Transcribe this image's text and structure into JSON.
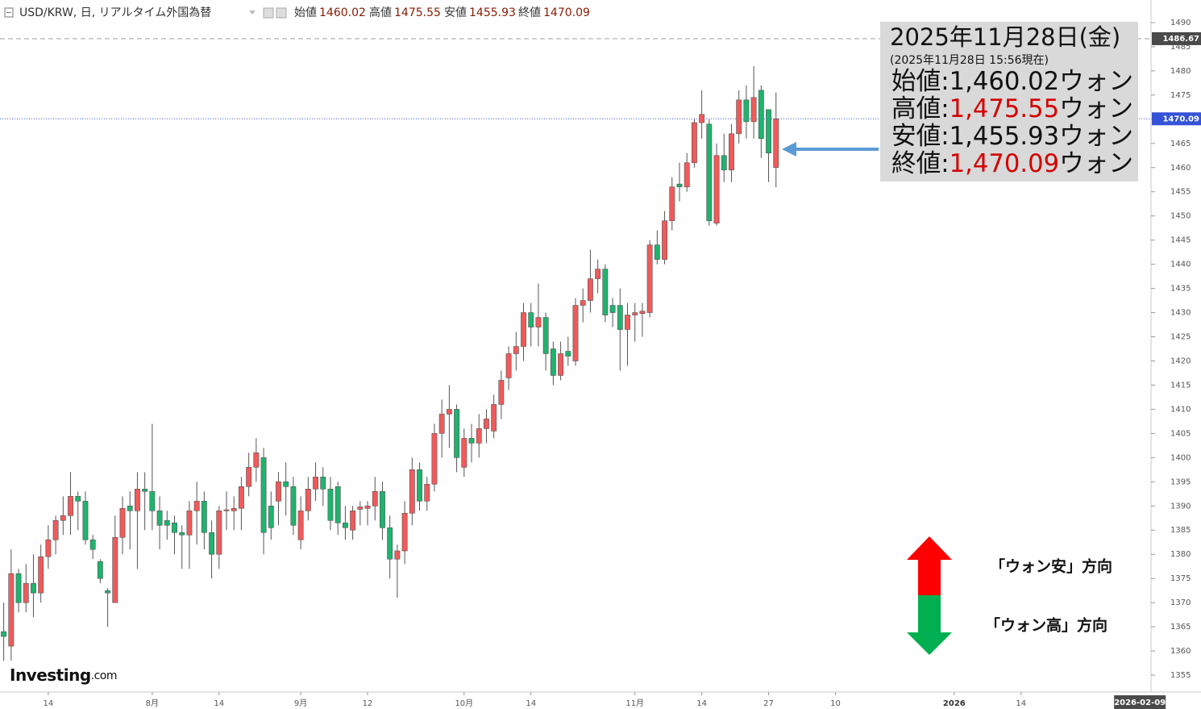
{
  "chart_data": {
    "type": "candlestick",
    "title": "USD/KRW, 日, リアルタイム外国為替",
    "header_labels": [
      "始値",
      "高値",
      "安値",
      "終値"
    ],
    "categories": [
      null,
      null,
      null,
      null,
      null,
      null,
      "14",
      null,
      null,
      null,
      null,
      null,
      null,
      null,
      null,
      null,
      null,
      null,
      null,
      null,
      "8月",
      null,
      null,
      null,
      null,
      null,
      null,
      null,
      null,
      "14",
      null,
      null,
      null,
      null,
      null,
      null,
      null,
      null,
      null,
      null,
      "9月",
      null,
      null,
      null,
      null,
      null,
      null,
      null,
      null,
      "12",
      null,
      null,
      null,
      null,
      null,
      null,
      null,
      null,
      null,
      null,
      null,
      null,
      "10月",
      null,
      null,
      null,
      null,
      null,
      null,
      null,
      null,
      "14",
      null,
      null,
      null,
      null,
      null,
      null,
      null,
      null,
      null,
      null,
      null,
      null,
      null,
      "11月",
      null,
      null,
      null,
      null,
      null,
      null,
      null,
      null,
      "14",
      null,
      null,
      null,
      null,
      null,
      null,
      null,
      null,
      "27",
      null,
      null,
      null,
      null,
      null,
      null,
      null,
      null,
      "10",
      null,
      null,
      null,
      null,
      null,
      null,
      null,
      null,
      null,
      null,
      null,
      null,
      null,
      null,
      null,
      "2026",
      null,
      null,
      null,
      null,
      null,
      null,
      null,
      null,
      "14",
      null,
      null,
      null,
      null,
      null,
      null,
      null,
      null,
      null,
      null,
      null,
      null,
      null,
      null,
      null,
      "2026-02-09",
      null
    ],
    "open": [
      1364,
      1361,
      1376,
      1370,
      1374,
      1372,
      1379.5,
      1383,
      1387,
      1388,
      1392,
      1391,
      1383,
      1378.5,
      1372.5,
      1370,
      1383.5,
      1390,
      1389,
      1393.5,
      1393,
      1389,
      1387,
      1386.5,
      1384.5,
      1384,
      1389,
      1391,
      1384.5,
      1380,
      1389,
      1389,
      1389.5,
      1394,
      1398,
      1400,
      1390,
      1391,
      1395,
      1394,
      1383,
      1389,
      1393.5,
      1396,
      1393.5,
      1394,
      1386.5,
      1385,
      1389.3,
      1389.5,
      1390,
      1393,
      1385.5,
      1379,
      1380.7,
      1388.5,
      1397.5,
      1391,
      1394.5,
      1405,
      1409,
      1410,
      1398,
      1404,
      1403,
      1406,
      1405.5,
      1411,
      1416.5,
      1421.5,
      1423,
      1430,
      1427,
      1429,
      1422.5,
      1417,
      1422,
      1420,
      1431.5,
      1432.5,
      1437,
      1439,
      1431.5,
      1431.5,
      1426.5,
      1429.5,
      1429.8,
      1430,
      1444,
      1441,
      1449,
      1456.6,
      1456,
      1461,
      1469.3,
      1469,
      1448.5,
      1462.5,
      1459.5,
      1467,
      1474,
      1469.5,
      1476,
      1472,
      1460.02,
      null,
      null,
      null,
      null,
      null,
      null,
      null,
      null,
      null,
      null,
      null,
      null,
      null,
      null,
      null,
      null,
      null,
      null,
      null,
      null,
      null,
      null,
      null,
      null,
      null,
      null,
      null,
      null,
      null,
      null,
      null,
      null,
      null,
      null,
      null,
      null,
      null,
      null,
      null,
      null,
      null,
      null,
      null,
      null,
      null,
      null,
      null,
      null,
      null,
      null
    ],
    "high": [
      1370,
      1381,
      1377,
      1378,
      1380,
      1382,
      1386,
      1388,
      1392,
      1397,
      1393,
      1393,
      1384,
      1379,
      1373,
      1388,
      1392,
      1393,
      1397,
      1397,
      1407,
      1392,
      1389,
      1388,
      1386,
      1391,
      1395,
      1393,
      1387,
      1390,
      1393,
      1392,
      1396,
      1401,
      1404,
      1402,
      1393,
      1397,
      1399,
      1396,
      1392,
      1396,
      1399,
      1398,
      1396,
      1395,
      1390,
      1390,
      1391,
      1391,
      1396,
      1395,
      1388,
      1382,
      1391,
      1400,
      1399,
      1396,
      1407,
      1412,
      1415,
      1411,
      1406,
      1407,
      1409,
      1410,
      1413,
      1418,
      1423,
      1426,
      1432,
      1432,
      1436,
      1430,
      1424,
      1424,
      1425,
      1433,
      1435,
      1443,
      1441,
      1440,
      1433,
      1435,
      1432,
      1432,
      1432,
      1445,
      1447,
      1451,
      1458,
      1461,
      1463,
      1470,
      1476,
      1470,
      1465,
      1467,
      1469,
      1476,
      1477,
      1481,
      1477,
      1472,
      1475.55,
      null,
      null,
      null,
      null,
      null,
      null,
      null,
      null,
      null,
      null,
      null,
      null,
      null,
      null,
      null,
      null,
      null,
      null,
      null,
      null,
      null,
      null,
      null,
      null,
      null,
      null,
      null,
      null,
      null,
      null,
      null,
      null,
      null,
      null,
      null,
      null,
      null,
      null,
      null,
      null,
      null,
      null,
      null,
      null,
      null,
      null,
      null,
      null,
      null,
      null
    ],
    "low": [
      1358,
      1358,
      1368,
      1368,
      1367,
      1370,
      1377,
      1380,
      1384,
      1384,
      1385,
      1382,
      1379,
      1374,
      1365,
      1370,
      1380,
      1381,
      1377,
      1385,
      1385,
      1381,
      1383,
      1380,
      1377,
      1377,
      1382,
      1381,
      1375,
      1377,
      1385,
      1385,
      1385,
      1392,
      1395,
      1380,
      1383,
      1386,
      1388,
      1384,
      1381,
      1387,
      1391,
      1390,
      1385,
      1384,
      1383,
      1383,
      1386,
      1386,
      1387,
      1383,
      1375,
      1371,
      1378,
      1386,
      1389,
      1389,
      1393,
      1400,
      1402,
      1397,
      1396,
      1399,
      1400,
      1403,
      1404,
      1408,
      1414,
      1418,
      1420,
      1423,
      1423,
      1418,
      1415,
      1416,
      1419,
      1419,
      1428,
      1430,
      1434,
      1428,
      1427,
      1418,
      1419,
      1424,
      1425,
      1429,
      1440,
      1440,
      1447,
      1453,
      1455,
      1460,
      1466,
      1448,
      1448,
      1457,
      1457,
      1465,
      1466,
      1466,
      1462,
      1457,
      1455.93,
      null,
      null,
      null,
      null,
      null,
      null,
      null,
      null,
      null,
      null,
      null,
      null,
      null,
      null,
      null,
      null,
      null,
      null,
      null,
      null,
      null,
      null,
      null,
      null,
      null,
      null,
      null,
      null,
      null,
      null,
      null,
      null,
      null,
      null,
      null,
      null,
      null,
      null,
      null,
      null,
      null,
      null,
      null,
      null,
      null,
      null,
      null,
      null,
      null,
      null
    ],
    "close": [
      1363,
      1376,
      1370,
      1374,
      1372,
      1379.5,
      1383,
      1387,
      1388,
      1392,
      1391,
      1383,
      1381,
      1375,
      1372,
      1383.5,
      1389.5,
      1389,
      1393.5,
      1393,
      1389,
      1386,
      1386,
      1384.5,
      1384,
      1389,
      1391,
      1384.5,
      1380,
      1389,
      1389.2,
      1389.5,
      1394,
      1398,
      1401,
      1384.5,
      1385.5,
      1395,
      1394,
      1386,
      1389,
      1393.5,
      1396,
      1393.5,
      1387,
      1386.5,
      1385.5,
      1389,
      1389.8,
      1390,
      1393,
      1385.5,
      1379,
      1380.7,
      1388.5,
      1397.5,
      1391,
      1394.5,
      1405,
      1409,
      1410,
      1400,
      1404,
      1403,
      1406,
      1408,
      1411,
      1416,
      1421.5,
      1423,
      1430,
      1427,
      1429,
      1421.5,
      1417,
      1421.5,
      1421,
      1431.5,
      1432.5,
      1437,
      1439,
      1429.5,
      1430,
      1426.5,
      1429.5,
      1430,
      1430.3,
      1444,
      1441,
      1449,
      1456,
      1456,
      1461,
      1469.3,
      1471,
      1449,
      1462.5,
      1459.5,
      1467,
      1474,
      1469.5,
      1474.5,
      1466,
      1463,
      1470.09,
      null,
      null,
      null,
      null,
      null,
      null,
      null,
      null,
      null,
      null,
      null,
      null,
      null,
      null,
      null,
      null,
      null,
      null,
      null,
      null,
      null,
      null,
      null,
      null,
      null,
      null,
      null,
      null,
      null,
      null,
      null,
      null,
      null,
      null,
      null,
      null,
      null,
      null,
      null,
      null,
      null,
      null,
      null,
      null,
      null,
      null,
      null,
      null,
      null,
      null
    ],
    "up_color": "#f05a5a",
    "down_color": "#1fb36e",
    "wick_color": "#555555",
    "ylim": [
      1351.5,
      1494.67
    ],
    "yticks": [
      1355,
      1360,
      1365,
      1370,
      1375,
      1380,
      1385,
      1390,
      1395,
      1400,
      1405,
      1410,
      1415,
      1420,
      1425,
      1430,
      1435,
      1440,
      1445,
      1450,
      1455,
      1460,
      1465,
      1470,
      1475,
      1480,
      1485,
      1490
    ],
    "grid": false,
    "price_lines": [
      {
        "value": 1486.67,
        "style": "dashed",
        "color": "#9e9e9e",
        "label_bg": "#4a4a4a"
      },
      {
        "value": 1470.09,
        "style": "dotted",
        "color": "#3553d6",
        "label_bg": "#3553d6"
      }
    ],
    "watermark": "Investing",
    "watermark_suffix": ".com",
    "info_box": {
      "date": "2025年11月28日(金)",
      "time": "(2025年11月28日 15:56現在)",
      "rows": [
        {
          "name": "始値",
          "sep": ":",
          "value": "1,460.02",
          "unit": "ウォン",
          "color": "#111111"
        },
        {
          "name": "高値",
          "sep": ":",
          "value": "1,475.55",
          "unit": "ウォン",
          "color": "#d40000"
        },
        {
          "name": "安値",
          "sep": ":",
          "value": "1,455.93",
          "unit": "ウォン",
          "color": "#111111"
        },
        {
          "name": "終値",
          "sep": ":",
          "value": "1,470.09",
          "unit": "ウォン",
          "color": "#d40000"
        }
      ]
    },
    "legend": [
      {
        "label": "「ウォン安」方向",
        "color": "#ff0000"
      },
      {
        "label": "「ウォン高」方向",
        "color": "#00b050"
      }
    ]
  }
}
